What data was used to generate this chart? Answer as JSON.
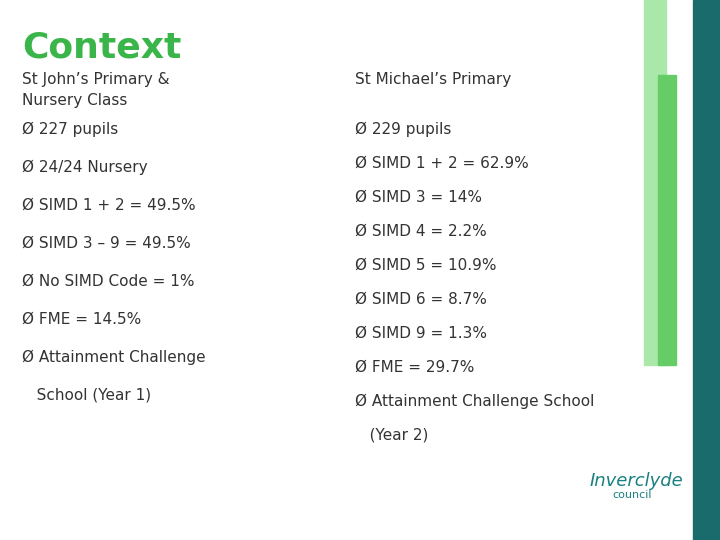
{
  "title": "Context",
  "title_color": "#3ab54a",
  "title_fontsize": 26,
  "title_fontweight": "bold",
  "background_color": "#ffffff",
  "text_color": "#333333",
  "col1_header": "St John’s Primary &\nNursery Class",
  "col2_header": "St Michael’s Primary",
  "col1_items": [
    "227 pupils",
    "24/24 Nursery",
    "SIMD 1 + 2 = 49.5%",
    "SIMD 3 – 9 = 49.5%",
    "No SIMD Code = 1%",
    "FME = 14.5%",
    "Attainment Challenge",
    "   School (Year 1)"
  ],
  "col2_items": [
    "229 pupils",
    "SIMD 1 + 2 = 62.9%",
    "SIMD 3 = 14%",
    "SIMD 4 = 2.2%",
    "SIMD 5 = 10.9%",
    "SIMD 6 = 8.7%",
    "SIMD 9 = 1.3%",
    "FME = 29.7%",
    "Attainment Challenge School",
    "   (Year 2)"
  ],
  "bullet": "Ø ",
  "header_fontsize": 11,
  "item_fontsize": 11,
  "right_bar_dark_color": "#1a6b6b",
  "right_bar_light_color": "#aae8aa",
  "right_bar_mid_color": "#66cc66",
  "inverclyde_color": "#1a8080",
  "inverclyde_council_color": "#1a8080"
}
